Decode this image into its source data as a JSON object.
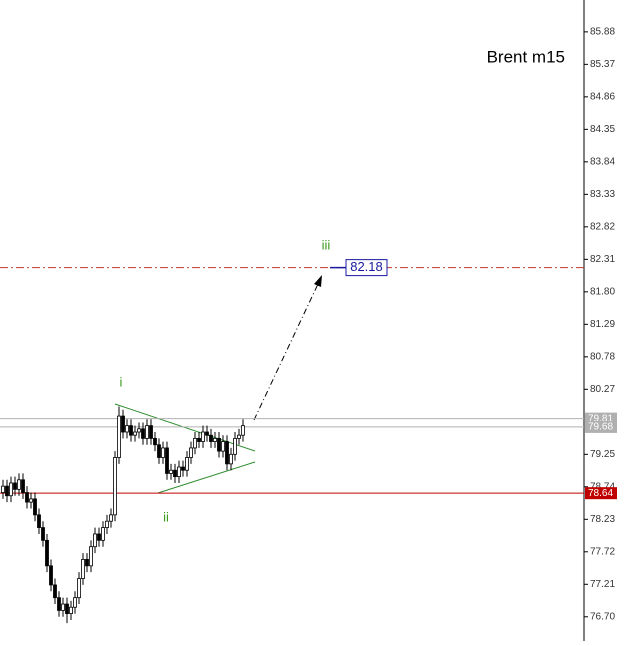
{
  "chart_data": {
    "type": "candlestick",
    "title": "Brent m15",
    "ylim": [
      76.32,
      86.38
    ],
    "yticks": [
      85.88,
      85.37,
      84.86,
      84.35,
      83.84,
      83.33,
      82.82,
      82.31,
      {
        "value": 81.8,
        "label": "81.80"
      },
      81.29,
      80.78,
      80.27,
      79.25,
      78.74,
      78.23,
      77.72,
      77.21,
      {
        "value": 76.7,
        "label": "76.70"
      }
    ],
    "open": [
      78.65,
      78.75,
      78.6,
      78.8,
      78.7,
      78.85,
      78.65,
      78.5,
      78.55,
      78.3,
      78.1,
      77.9,
      77.5,
      77.2,
      77.0,
      76.8,
      76.9,
      76.75,
      76.85,
      77.0,
      77.3,
      77.6,
      77.5,
      77.8,
      78.0,
      77.9,
      78.1,
      78.2,
      78.3,
      79.2,
      79.85,
      79.6,
      79.7,
      79.55,
      79.6,
      79.65,
      79.5,
      79.7,
      79.5,
      79.4,
      79.2,
      79.35,
      78.95,
      79.0,
      78.9,
      79.05,
      79.0,
      79.2,
      79.35,
      79.5,
      79.45,
      79.6,
      79.55,
      79.45,
      79.5,
      79.3,
      79.45,
      79.1,
      79.25,
      79.5,
      79.55
    ],
    "high": [
      78.85,
      78.85,
      78.9,
      78.9,
      78.95,
      78.95,
      78.75,
      78.65,
      78.65,
      78.4,
      78.2,
      78.0,
      77.6,
      77.3,
      77.1,
      77.0,
      77.0,
      76.95,
      77.1,
      77.4,
      77.7,
      77.7,
      77.9,
      78.1,
      78.1,
      78.2,
      78.3,
      78.4,
      79.3,
      80.0,
      79.95,
      79.8,
      79.8,
      79.7,
      79.75,
      79.75,
      79.8,
      79.8,
      79.6,
      79.5,
      79.45,
      79.45,
      79.1,
      79.1,
      79.15,
      79.15,
      79.3,
      79.45,
      79.6,
      79.6,
      79.7,
      79.7,
      79.65,
      79.6,
      79.6,
      79.55,
      79.55,
      79.35,
      79.6,
      79.65,
      79.8
    ],
    "low": [
      78.55,
      78.5,
      78.5,
      78.6,
      78.6,
      78.55,
      78.4,
      78.4,
      78.2,
      78.0,
      77.8,
      77.4,
      77.1,
      76.9,
      76.7,
      76.7,
      76.6,
      76.65,
      76.75,
      76.9,
      77.2,
      77.4,
      77.4,
      77.7,
      77.8,
      77.8,
      78.0,
      78.1,
      78.2,
      79.1,
      79.5,
      79.5,
      79.45,
      79.45,
      79.5,
      79.4,
      79.4,
      79.4,
      79.3,
      79.1,
      79.1,
      78.85,
      78.85,
      78.8,
      78.8,
      78.9,
      78.9,
      79.1,
      79.25,
      79.35,
      79.35,
      79.45,
      79.35,
      79.35,
      79.2,
      79.2,
      79.0,
      79.0,
      79.15,
      79.4,
      79.45
    ],
    "close": [
      78.75,
      78.6,
      78.8,
      78.7,
      78.85,
      78.65,
      78.5,
      78.55,
      78.3,
      78.1,
      77.9,
      77.5,
      77.2,
      77.0,
      76.8,
      76.9,
      76.75,
      76.85,
      77.0,
      77.3,
      77.6,
      77.5,
      77.8,
      78.0,
      77.9,
      78.1,
      78.2,
      78.3,
      79.2,
      79.85,
      79.6,
      79.7,
      79.55,
      79.6,
      79.65,
      79.5,
      79.7,
      79.5,
      79.4,
      79.2,
      79.35,
      78.95,
      79.0,
      78.9,
      79.05,
      79.0,
      79.2,
      79.35,
      79.5,
      79.45,
      79.6,
      79.55,
      79.45,
      79.5,
      79.3,
      79.45,
      79.1,
      79.25,
      79.5,
      79.55,
      79.7
    ],
    "levels": [
      {
        "value": 82.18,
        "color": "#c0392b",
        "style": "dashdot"
      },
      {
        "value": 79.81,
        "color": "#b0b0b0",
        "style": "solid"
      },
      {
        "value": 79.68,
        "color": "#b0b0b0",
        "style": "solid"
      },
      {
        "value": 78.64,
        "color": "#c00000",
        "style": "solid"
      }
    ],
    "target": 82.18,
    "annotations": [
      "i",
      "ii",
      "iii"
    ]
  }
}
